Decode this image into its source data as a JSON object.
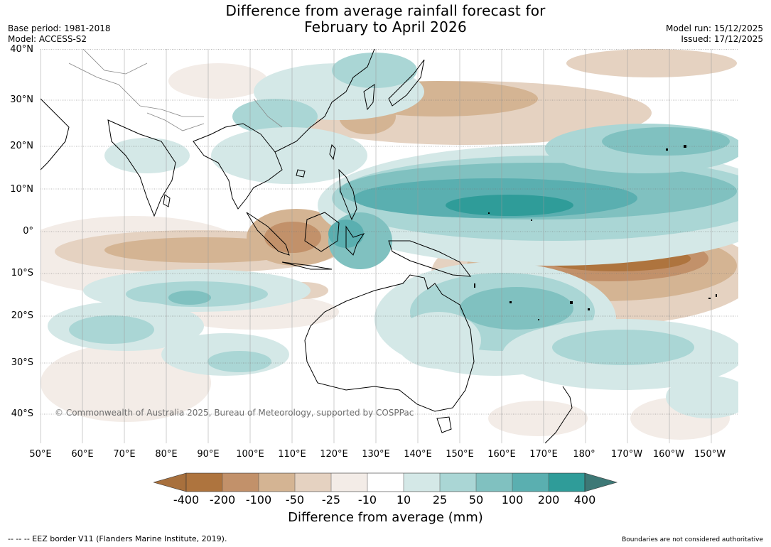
{
  "title_line1": "Difference from average rainfall forecast for",
  "title_line2": "February to April 2026",
  "base_period": "Base period: 1981-2018",
  "model": "Model: ACCESS-S2",
  "model_run": "Model run: 15/12/2025",
  "issued": "Issued: 17/12/2025",
  "lat_labels": [
    "40°N",
    "30°N",
    "20°N",
    "10°N",
    "0°",
    "10°S",
    "20°S",
    "30°S",
    "40°S"
  ],
  "lon_labels": [
    "50°E",
    "60°E",
    "70°E",
    "80°E",
    "90°E",
    "100°E",
    "110°E",
    "120°E",
    "130°E",
    "140°E",
    "150°E",
    "160°E",
    "170°E",
    "180°",
    "170°W",
    "160°W",
    "150°W"
  ],
  "copyright": "© Commonwealth of Australia 2025, Bureau of Meteorology, supported by COSPPac",
  "legend": {
    "title": "Difference from average (mm)",
    "ticks": [
      "-400",
      "-200",
      "-100",
      "-50",
      "-25",
      "-10",
      "10",
      "25",
      "50",
      "100",
      "200",
      "400"
    ],
    "colors": {
      "lt400": "#a8703d",
      "m400_200": "#ae743e",
      "m200_100": "#c2916a",
      "m100_50": "#d4b493",
      "m50_25": "#e5d2c1",
      "m25_10": "#f3ece7",
      "m10_10": "#ffffff",
      "p10_25": "#d4e8e7",
      "p25_50": "#aad6d5",
      "p50_100": "#80c1c0",
      "p100_200": "#5aafb0",
      "p200_400": "#2f9c99",
      "gt400": "#3d7876"
    }
  },
  "footer_left": "--  --  -- EEZ border V11 (Flanders Marine Institute, 2019).",
  "footer_right": "Boundaries are not considered authoritative"
}
